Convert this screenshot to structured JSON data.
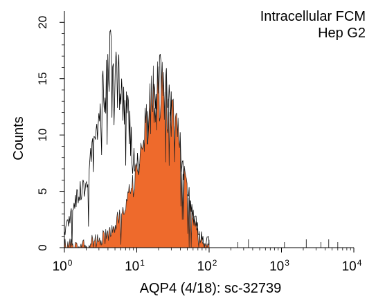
{
  "chart_data": {
    "type": "area",
    "title": "",
    "annotations": [
      "Intracellular FCM",
      "Hep G2"
    ],
    "xlabel": "AQP4 (4/18): sc-32739",
    "ylabel": "Counts",
    "x_scale": "log10",
    "xlim": [
      1,
      10000
    ],
    "ylim": [
      0,
      21
    ],
    "x_ticks": [
      {
        "value": 1,
        "base": "10",
        "exp": "0"
      },
      {
        "value": 10,
        "base": "10",
        "exp": "1"
      },
      {
        "value": 100,
        "base": "10",
        "exp": "2"
      },
      {
        "value": 1000,
        "base": "10",
        "exp": "3"
      },
      {
        "value": 10000,
        "base": "10",
        "exp": "4"
      }
    ],
    "y_ticks": [
      {
        "value": 0,
        "label": "0"
      },
      {
        "value": 5,
        "label": "5"
      },
      {
        "value": 10,
        "label": "10"
      },
      {
        "value": 15,
        "label": "15"
      },
      {
        "value": 20,
        "label": "20"
      }
    ],
    "grid": false,
    "legend": "none",
    "series": [
      {
        "style": "outline",
        "color": "#000000",
        "x": [
          1.0,
          1.2,
          1.5,
          2.0,
          2.5,
          3.0,
          3.5,
          4.0,
          4.5,
          5.0,
          5.5,
          6.0,
          6.5,
          7.0,
          8.0,
          9.0,
          10.0,
          11.0,
          12.0,
          14.0,
          16.0,
          18.0,
          20.0,
          25.0,
          30.0,
          35.0,
          40.0,
          50.0,
          60.0,
          70.0,
          80.0,
          100.0
        ],
        "y": [
          1.0,
          3.0,
          4.5,
          6.0,
          9.0,
          11.5,
          13.5,
          15.5,
          16.5,
          16.0,
          14.5,
          14.0,
          12.5,
          12.0,
          10.5,
          9.0,
          7.5,
          7.0,
          8.5,
          10.0,
          12.0,
          13.5,
          14.5,
          14.0,
          12.0,
          10.0,
          8.5,
          5.5,
          3.0,
          1.5,
          0.5,
          0.2
        ]
      },
      {
        "style": "filled",
        "color": "#ee6a2c",
        "x": [
          1.0,
          2.0,
          3.0,
          4.0,
          5.0,
          6.0,
          7.0,
          8.0,
          9.0,
          10.0,
          12.0,
          14.0,
          16.0,
          18.0,
          20.0,
          22.0,
          25.0,
          28.0,
          30.0,
          35.0,
          40.0,
          45.0,
          50.0,
          55.0,
          60.0,
          70.0,
          80.0,
          90.0,
          100.0
        ],
        "y": [
          0.0,
          0.2,
          0.5,
          1.0,
          2.0,
          3.0,
          4.0,
          4.8,
          5.5,
          6.5,
          9.0,
          11.5,
          13.0,
          14.0,
          13.5,
          14.0,
          13.5,
          12.5,
          12.0,
          10.0,
          9.0,
          7.5,
          5.5,
          4.0,
          3.0,
          1.5,
          0.5,
          0.3,
          0.0
        ]
      }
    ],
    "colors": {
      "fill": "#ee6a2c",
      "line": "#000000"
    }
  }
}
